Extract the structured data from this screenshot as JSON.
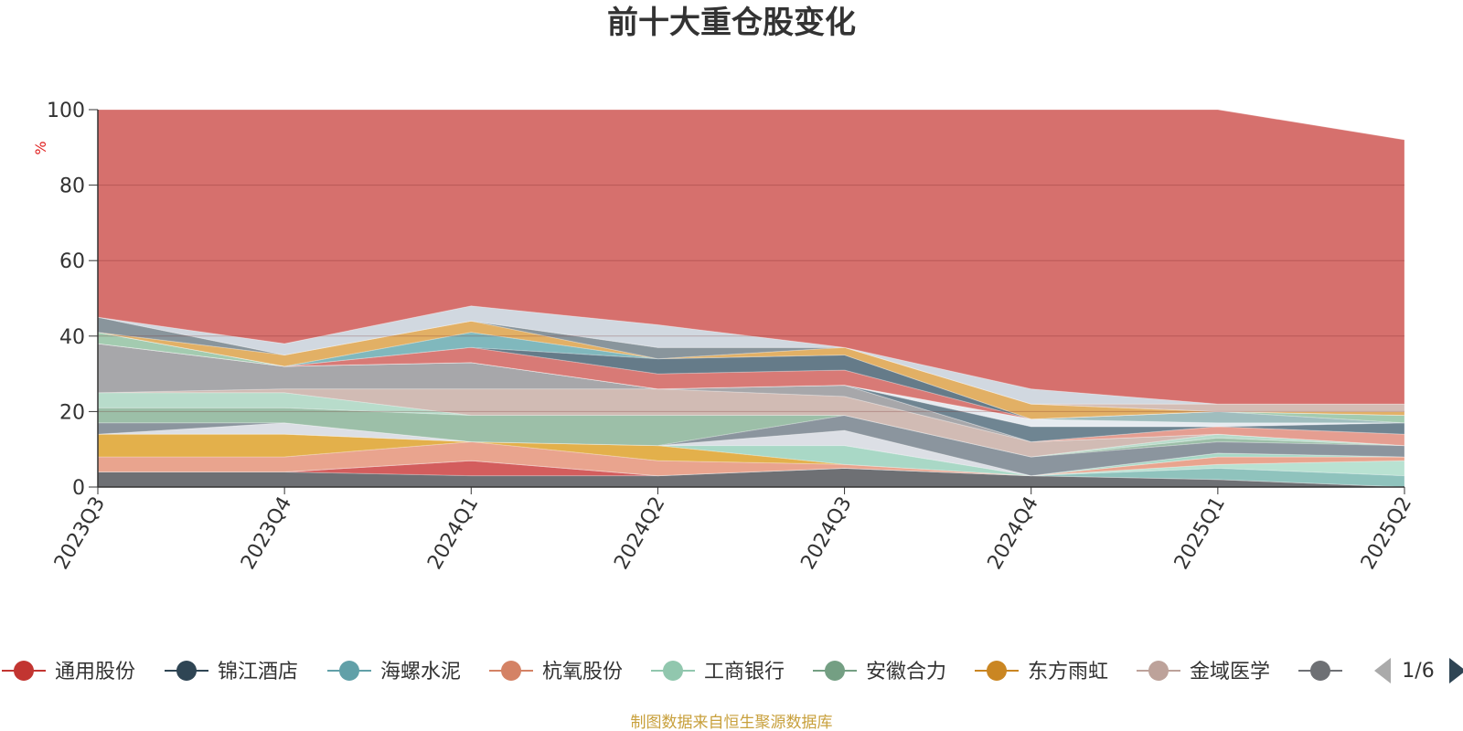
{
  "chart_data": {
    "type": "area",
    "stacked": true,
    "title": "前十大重仓股变化",
    "ylabel": "%",
    "ylim": [
      0,
      100
    ],
    "y_ticks": [
      "0",
      "20",
      "40",
      "60",
      "80",
      "100"
    ],
    "categories": [
      "2023Q3",
      "2023Q4",
      "2024Q1",
      "2024Q2",
      "2024Q3",
      "2024Q4",
      "2025Q1",
      "2025Q2"
    ],
    "grid": true,
    "legend_position": "bottom",
    "series": [
      {
        "name": "",
        "color": "#6e7074",
        "values": [
          4,
          4,
          3,
          3,
          5,
          3,
          2,
          0
        ]
      },
      {
        "name": "",
        "color": "#d35d5d",
        "values": [
          0,
          0,
          4,
          0,
          0,
          0,
          0,
          0
        ]
      },
      {
        "name": "",
        "color": "#8fc3bd",
        "values": [
          0,
          0,
          0,
          0,
          0,
          0,
          3,
          3
        ]
      },
      {
        "name": "",
        "color": "#b9e2d2",
        "values": [
          0,
          0,
          0,
          0,
          0,
          0,
          1,
          4
        ]
      },
      {
        "name": "",
        "color": "#e9a48e",
        "values": [
          4,
          4,
          5,
          4,
          1,
          0,
          2,
          1
        ]
      },
      {
        "name": "",
        "color": "#e3b04b",
        "values": [
          6,
          6,
          0,
          4,
          0,
          0,
          0,
          0
        ]
      },
      {
        "name": "",
        "color": "#a9d8c6",
        "values": [
          0,
          0,
          0,
          0,
          5,
          0,
          1,
          0
        ]
      },
      {
        "name": "",
        "color": "#dcdfe5",
        "values": [
          0,
          3,
          0,
          0,
          4,
          0,
          0,
          0
        ]
      },
      {
        "name": "",
        "color": "#8b959e",
        "values": [
          3,
          0,
          0,
          0,
          4,
          5,
          3,
          3
        ]
      },
      {
        "name": "",
        "color": "#9cbfa8",
        "values": [
          4,
          4,
          7,
          8,
          0,
          0,
          1,
          0
        ]
      },
      {
        "name": "",
        "color": "#b8dccb",
        "values": [
          4,
          4,
          0,
          0,
          0,
          0,
          1,
          0
        ]
      },
      {
        "name": "",
        "color": "#d1bbb4",
        "values": [
          0,
          1,
          7,
          7,
          5,
          4,
          0,
          0
        ]
      },
      {
        "name": "",
        "color": "#a7a7aa",
        "values": [
          13,
          6,
          7,
          0,
          3,
          0,
          0,
          0
        ]
      },
      {
        "name": "",
        "color": "#e59e91",
        "values": [
          0,
          0,
          0,
          0,
          0,
          0,
          2,
          3
        ]
      },
      {
        "name": "",
        "color": "#6f8592",
        "values": [
          0,
          0,
          0,
          0,
          0,
          4,
          0,
          3
        ]
      },
      {
        "name": "",
        "color": "#e6ebf0",
        "values": [
          0,
          0,
          0,
          0,
          0,
          2,
          1,
          0
        ]
      },
      {
        "name": "",
        "color": "#9fbdbe",
        "values": [
          0,
          0,
          0,
          0,
          0,
          0,
          3,
          0
        ]
      },
      {
        "name": "",
        "color": "#a3cbb0",
        "values": [
          3,
          0,
          0,
          0,
          0,
          0,
          0,
          2
        ]
      },
      {
        "name": "",
        "color": "#d87a76",
        "values": [
          0,
          0,
          4,
          4,
          4,
          0,
          0,
          0
        ]
      },
      {
        "name": "",
        "color": "#657b89",
        "values": [
          0,
          0,
          0,
          4,
          4,
          0,
          0,
          0
        ]
      },
      {
        "name": "",
        "color": "#80b8bd",
        "values": [
          0,
          0,
          4,
          0,
          0,
          0,
          0,
          0
        ]
      },
      {
        "name": "",
        "color": "#e2b065",
        "values": [
          0,
          3,
          3,
          0,
          2,
          4,
          0,
          1
        ]
      },
      {
        "name": "",
        "color": "#89959c",
        "values": [
          4,
          0,
          0,
          3,
          0,
          0,
          0,
          0
        ]
      },
      {
        "name": "",
        "color": "#d4bdb5",
        "values": [
          0,
          0,
          0,
          0,
          0,
          0,
          2,
          2
        ]
      },
      {
        "name": "",
        "color": "#d1d8e0",
        "values": [
          0,
          3,
          4,
          6,
          0,
          4,
          0,
          0
        ]
      },
      {
        "name": "",
        "color": "#d6706d",
        "values": [
          55,
          62,
          52,
          57,
          63,
          74,
          78,
          70
        ]
      }
    ]
  },
  "legend": {
    "items": [
      {
        "label": "通用股份",
        "color": "#c23531"
      },
      {
        "label": "锦江酒店",
        "color": "#2f4554"
      },
      {
        "label": "海螺水泥",
        "color": "#61a0a8"
      },
      {
        "label": "杭氧股份",
        "color": "#d48265"
      },
      {
        "label": "工商银行",
        "color": "#91c7ae"
      },
      {
        "label": "安徽合力",
        "color": "#749f83"
      },
      {
        "label": "东方雨虹",
        "color": "#ca8622"
      },
      {
        "label": "金域医学",
        "color": "#bda29a"
      },
      {
        "label": "",
        "color": "#6e7074"
      }
    ],
    "page": "1/6"
  },
  "source": "制图数据来自恒生聚源数据库"
}
